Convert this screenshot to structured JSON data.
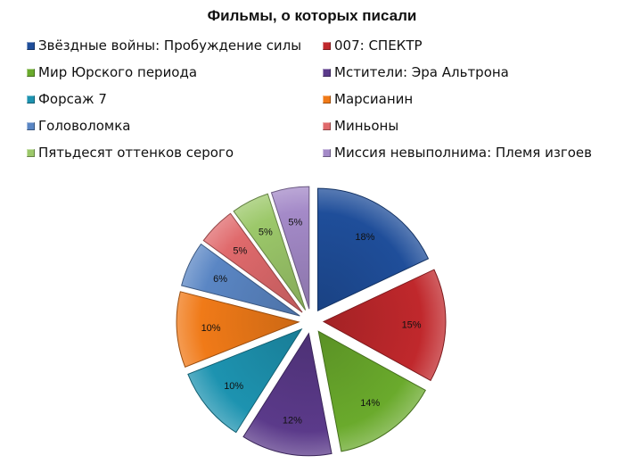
{
  "chart_data": {
    "type": "pie",
    "title": "Фильмы, о которых писали",
    "legend_position": "top",
    "exploded": true,
    "categories": [
      "Звёздные войны: Пробуждение силы",
      "007: СПЕКТР",
      "Мир Юрского периода",
      "Мстители: Эра Альтрона",
      "Форсаж 7",
      "Марсианин",
      "Головоломка",
      "Миньоны",
      "Пятьдесят оттенков серого",
      "Миссия невыполнима: Племя изгоев"
    ],
    "values": [
      18,
      15,
      14,
      12,
      10,
      10,
      6,
      5,
      5,
      5
    ],
    "labels": [
      "18%",
      "15%",
      "14%",
      "12%",
      "10%",
      "10%",
      "6%",
      "5%",
      "5%",
      "5%"
    ],
    "colors": [
      "#1f4e9a",
      "#c0282c",
      "#6aaa2c",
      "#5b3a8a",
      "#1d93b0",
      "#f07a18",
      "#5a86c4",
      "#e06a6c",
      "#9cc86a",
      "#a48ac8"
    ]
  }
}
